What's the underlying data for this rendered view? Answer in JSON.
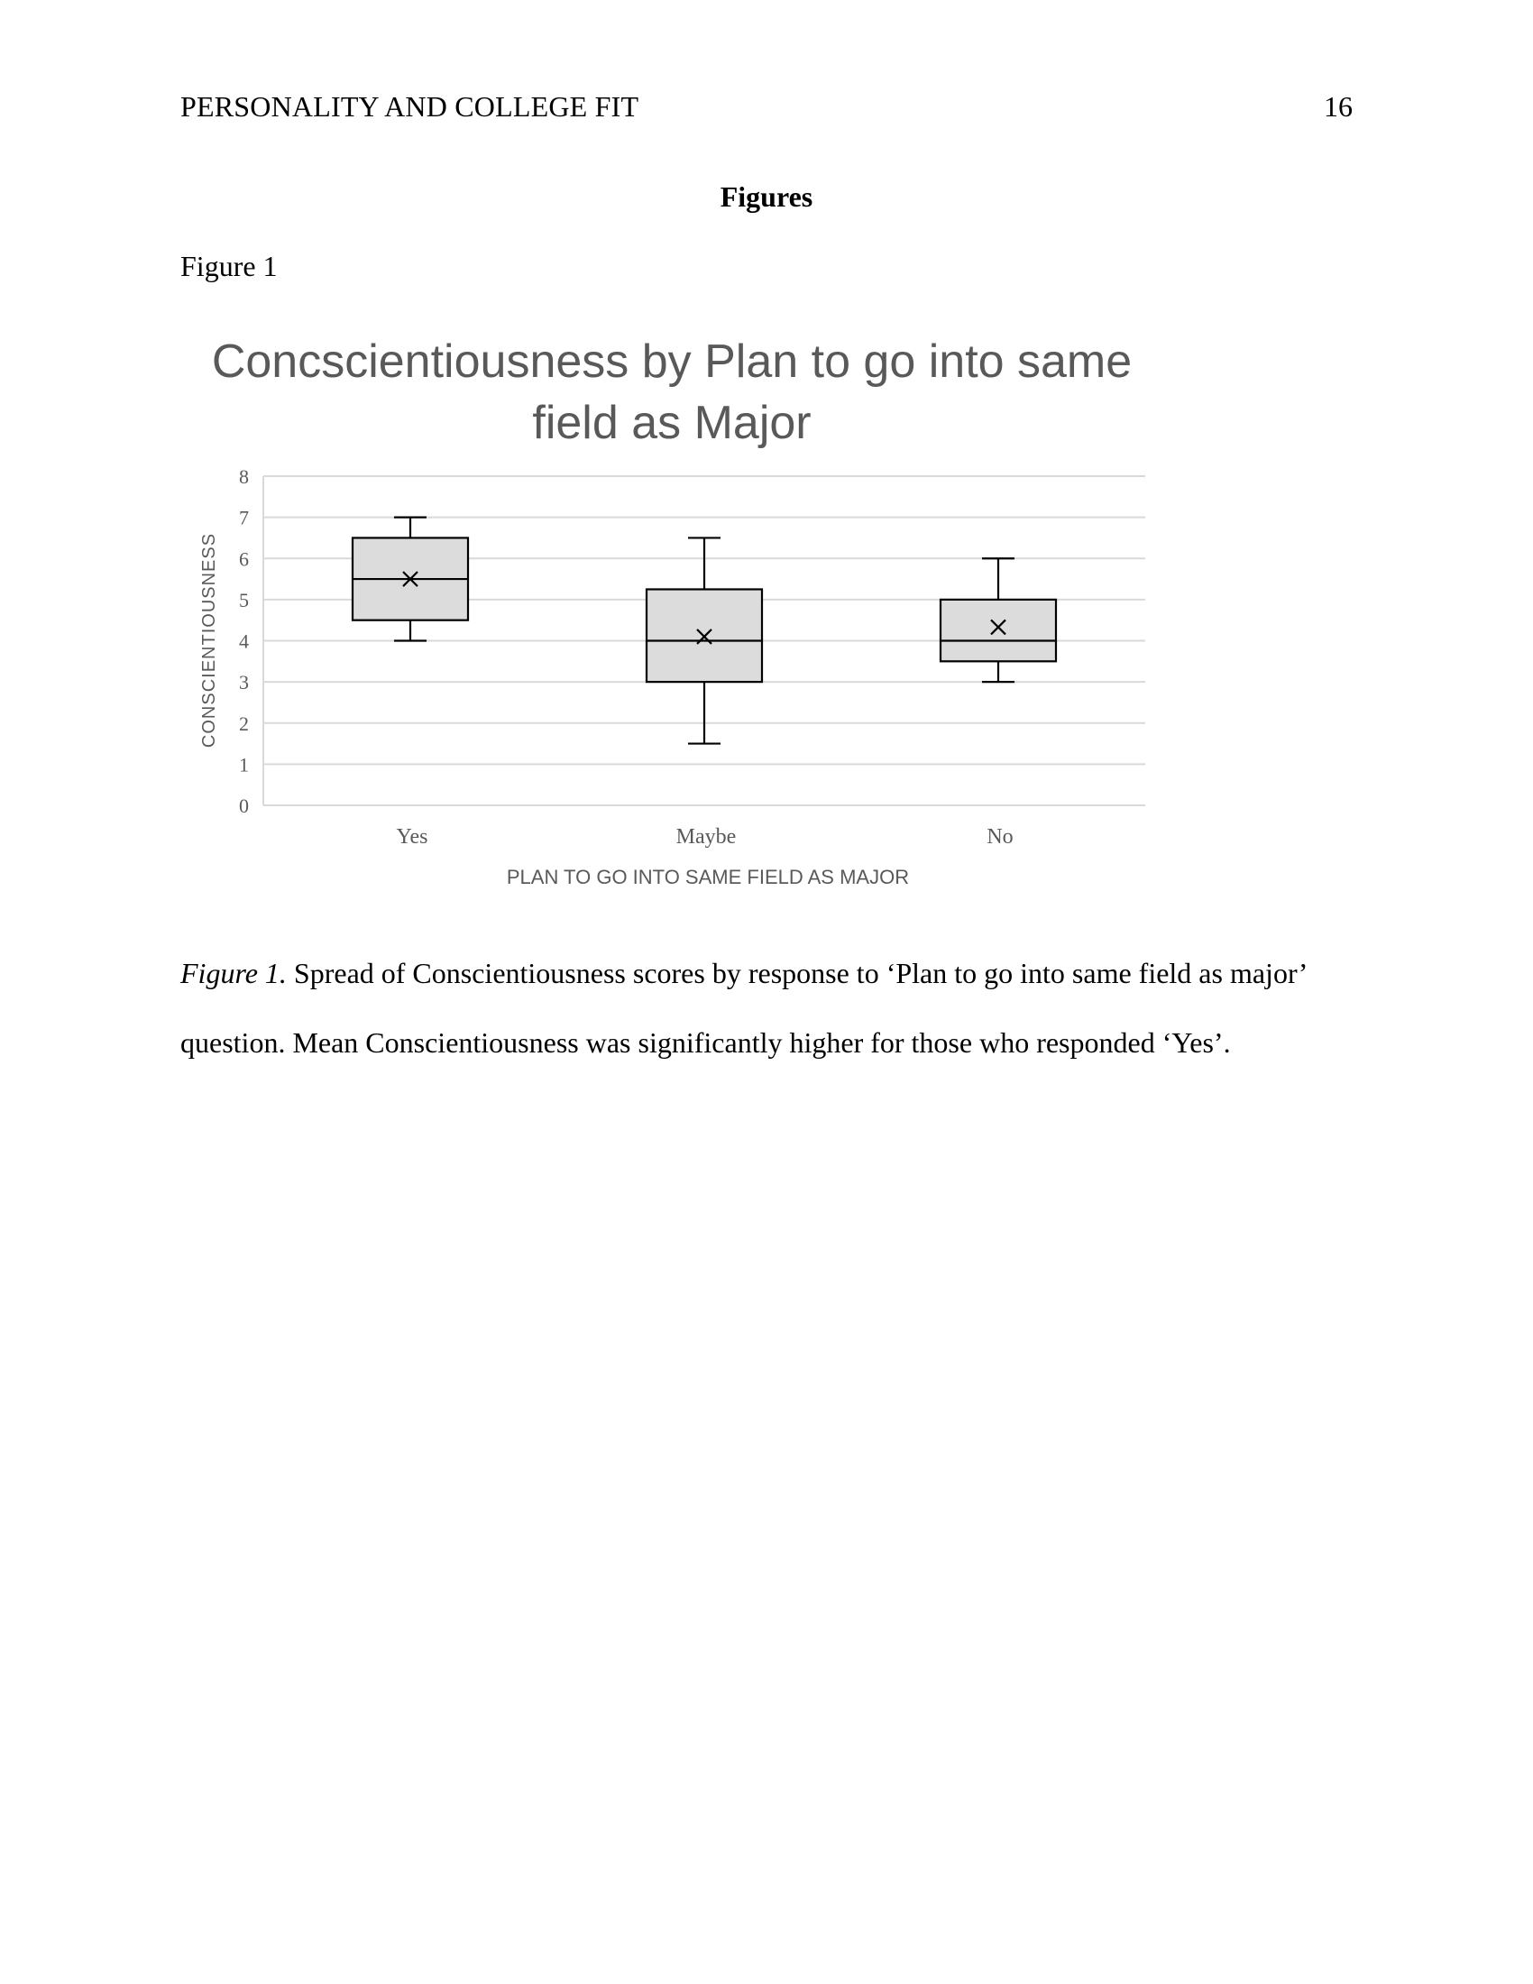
{
  "header": {
    "running_head": "PERSONALITY AND COLLEGE FIT",
    "page_number": "16"
  },
  "section_heading": "Figures",
  "figure_label": "Figure 1",
  "chart_data": {
    "type": "boxplot",
    "title_lines": [
      "Concscientiousness by Plan to go into same",
      "field as Major"
    ],
    "xlabel": "PLAN TO GO INTO SAME FIELD AS MAJOR",
    "ylabel": "CONSCIENTIOUSNESS",
    "ylim": [
      0,
      8
    ],
    "yticks": [
      0,
      1,
      2,
      3,
      4,
      5,
      6,
      7,
      8
    ],
    "grid": true,
    "categories": [
      "Yes",
      "Maybe",
      "No"
    ],
    "boxes": [
      {
        "category": "Yes",
        "min": 4,
        "q1": 4.5,
        "median": 5.5,
        "q3": 6.5,
        "max": 7,
        "mean": 5.5
      },
      {
        "category": "Maybe",
        "min": 1.5,
        "q1": 3,
        "median": 4,
        "q3": 5.25,
        "max": 6.5,
        "mean": 4.1
      },
      {
        "category": "No",
        "min": 3,
        "q1": 3.5,
        "median": 4,
        "q3": 5,
        "max": 6,
        "mean": 4.33
      }
    ],
    "colors": {
      "box_fill": "#dcdcdc",
      "box_stroke": "#000000",
      "grid": "#d9d9d9",
      "text": "#595959"
    }
  },
  "caption": {
    "figure_number": "Figure 1.",
    "text": " Spread of Conscientiousness scores by response to ‘Plan to go into same field as major’ question. Mean Conscientiousness was significantly higher for those who responded ‘Yes’."
  }
}
